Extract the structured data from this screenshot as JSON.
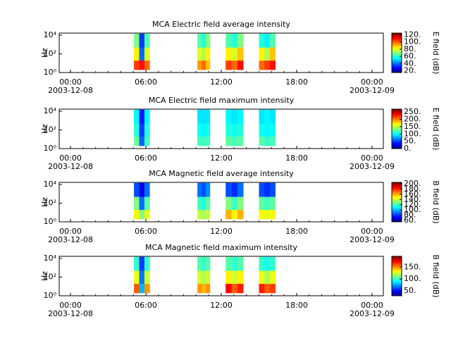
{
  "chart_data": [
    {
      "type": "spectrogram",
      "title": "MCA  Electric field average intensity",
      "ylabel": "Hz",
      "clabel": "E field (dB)",
      "xlim": [
        -0.9,
        24.9
      ],
      "xticks": [
        {
          "value": 0,
          "label": "00:00"
        },
        {
          "value": 6,
          "label": "06:00"
        },
        {
          "value": 12,
          "label": "12:00"
        },
        {
          "value": 18,
          "label": "18:00"
        },
        {
          "value": 24,
          "label": "00:00"
        }
      ],
      "xdates": [
        {
          "value": 0,
          "label": "2003-12-08"
        },
        {
          "value": 24,
          "label": "2003-12-09"
        }
      ],
      "ylim": [
        1,
        17000
      ],
      "log_y": true,
      "yticks": [
        {
          "value": 1,
          "label": "10⁰"
        },
        {
          "value": 100,
          "label": "10²"
        },
        {
          "value": 10000,
          "label": "10⁴"
        }
      ],
      "clim": [
        15,
        125
      ],
      "cticks": [
        {
          "value": 20,
          "label": "20."
        },
        {
          "value": 40,
          "label": "40."
        },
        {
          "value": 60,
          "label": "60."
        },
        {
          "value": 80,
          "label": "80."
        },
        {
          "value": 100,
          "label": "100."
        },
        {
          "value": 120,
          "label": "120."
        }
      ],
      "freq_bins": [
        2,
        20,
        500,
        15000
      ],
      "segments": [
        {
          "x": [
            5.05,
            6.3
          ],
          "values": [
            [
              105,
              110,
              100
            ],
            [
              85,
              40,
              80
            ],
            [
              70,
              35,
              65
            ]
          ]
        },
        {
          "x": [
            10.1,
            11.1
          ],
          "values": [
            [
              95,
              100,
              90
            ],
            [
              80,
              75,
              85
            ],
            [
              65,
              60,
              70
            ]
          ]
        },
        {
          "x": [
            12.35,
            13.75
          ],
          "values": [
            [
              105,
              100,
              110
            ],
            [
              85,
              80,
              90
            ],
            [
              65,
              60,
              70
            ]
          ]
        },
        {
          "x": [
            15.0,
            16.3
          ],
          "values": [
            [
              100,
              105,
              110
            ],
            [
              85,
              75,
              90
            ],
            [
              60,
              55,
              65
            ]
          ]
        }
      ]
    },
    {
      "type": "spectrogram",
      "title": "MCA  Electric field maximum intensity",
      "ylabel": "Hz",
      "clabel": "E field (dB)",
      "xlim": [
        -0.9,
        24.9
      ],
      "xticks": [
        {
          "value": 0,
          "label": "00:00"
        },
        {
          "value": 6,
          "label": "06:00"
        },
        {
          "value": 12,
          "label": "12:00"
        },
        {
          "value": 18,
          "label": "18:00"
        },
        {
          "value": 24,
          "label": "00:00"
        }
      ],
      "xdates": [
        {
          "value": 0,
          "label": "2003-12-08"
        },
        {
          "value": 24,
          "label": "2003-12-09"
        }
      ],
      "ylim": [
        1,
        17000
      ],
      "log_y": true,
      "yticks": [
        {
          "value": 1,
          "label": "10⁰"
        },
        {
          "value": 100,
          "label": "10²"
        },
        {
          "value": 10000,
          "label": "10⁴"
        }
      ],
      "clim": [
        0,
        270
      ],
      "cticks": [
        {
          "value": 0,
          "label": "0."
        },
        {
          "value": 50,
          "label": "50."
        },
        {
          "value": 100,
          "label": "100."
        },
        {
          "value": 150,
          "label": "150."
        },
        {
          "value": 200,
          "label": "200."
        },
        {
          "value": 250,
          "label": "250."
        }
      ],
      "freq_bins": [
        2,
        20,
        500,
        15000
      ],
      "segments": [
        {
          "x": [
            5.05,
            6.3
          ],
          "values": [
            [
              130,
              60,
              120
            ],
            [
              110,
              50,
              110
            ],
            [
              100,
              40,
              100
            ]
          ]
        },
        {
          "x": [
            10.1,
            11.1
          ],
          "values": [
            [
              120,
              115,
              120
            ],
            [
              105,
              100,
              105
            ],
            [
              95,
              95,
              95
            ]
          ]
        },
        {
          "x": [
            12.35,
            13.75
          ],
          "values": [
            [
              125,
              120,
              125
            ],
            [
              110,
              105,
              110
            ],
            [
              100,
              95,
              100
            ]
          ]
        },
        {
          "x": [
            15.0,
            16.3
          ],
          "values": [
            [
              125,
              115,
              120
            ],
            [
              105,
              100,
              105
            ],
            [
              95,
              100,
              95
            ]
          ]
        }
      ]
    },
    {
      "type": "spectrogram",
      "title": "MCA  Magnetic field average intensity",
      "ylabel": "Hz",
      "clabel": "B field (dB)",
      "xlim": [
        -0.9,
        24.9
      ],
      "xticks": [
        {
          "value": 0,
          "label": "00:00"
        },
        {
          "value": 6,
          "label": "06:00"
        },
        {
          "value": 12,
          "label": "12:00"
        },
        {
          "value": 18,
          "label": "18:00"
        },
        {
          "value": 24,
          "label": "00:00"
        }
      ],
      "xdates": [
        {
          "value": 0,
          "label": "2003-12-08"
        },
        {
          "value": 24,
          "label": "2003-12-09"
        }
      ],
      "ylim": [
        1,
        17000
      ],
      "log_y": true,
      "yticks": [
        {
          "value": 1,
          "label": "10⁰"
        },
        {
          "value": 100,
          "label": "10²"
        },
        {
          "value": 10000,
          "label": "10⁴"
        }
      ],
      "clim": [
        55,
        205
      ],
      "cticks": [
        {
          "value": 60,
          "label": "60."
        },
        {
          "value": 80,
          "label": "80."
        },
        {
          "value": 100,
          "label": "100."
        },
        {
          "value": 120,
          "label": "120."
        },
        {
          "value": 140,
          "label": "140."
        },
        {
          "value": 160,
          "label": "160."
        },
        {
          "value": 180,
          "label": "180."
        },
        {
          "value": 200,
          "label": "200."
        }
      ],
      "freq_bins": [
        2,
        20,
        500,
        15000
      ],
      "segments": [
        {
          "x": [
            5.05,
            6.3
          ],
          "values": [
            [
              150,
              130,
              145
            ],
            [
              130,
              90,
              125
            ],
            [
              85,
              70,
              90
            ]
          ]
        },
        {
          "x": [
            10.1,
            11.1
          ],
          "values": [
            [
              140,
              135,
              140
            ],
            [
              120,
              115,
              125
            ],
            [
              90,
              85,
              95
            ]
          ]
        },
        {
          "x": [
            12.35,
            13.75
          ],
          "values": [
            [
              160,
              150,
              160
            ],
            [
              130,
              120,
              130
            ],
            [
              85,
              80,
              90
            ]
          ]
        },
        {
          "x": [
            15.0,
            16.3
          ],
          "values": [
            [
              150,
              145,
              150
            ],
            [
              125,
              120,
              125
            ],
            [
              85,
              80,
              85
            ]
          ]
        }
      ]
    },
    {
      "type": "spectrogram",
      "title": "MCA  Magnetic field maximum intensity",
      "ylabel": "Hz",
      "clabel": "B field (dB)",
      "xlim": [
        -0.9,
        24.9
      ],
      "xticks": [
        {
          "value": 0,
          "label": "00:00"
        },
        {
          "value": 6,
          "label": "06:00"
        },
        {
          "value": 12,
          "label": "12:00"
        },
        {
          "value": 18,
          "label": "18:00"
        },
        {
          "value": 24,
          "label": "00:00"
        }
      ],
      "xdates": [
        {
          "value": 0,
          "label": "2003-12-08"
        },
        {
          "value": 24,
          "label": "2003-12-09"
        }
      ],
      "ylim": [
        1,
        17000
      ],
      "log_y": true,
      "yticks": [
        {
          "value": 1,
          "label": "10⁰"
        },
        {
          "value": 100,
          "label": "10²"
        },
        {
          "value": 10000,
          "label": "10⁴"
        }
      ],
      "clim": [
        30,
        195
      ],
      "cticks": [
        {
          "value": 50,
          "label": "50."
        },
        {
          "value": 100,
          "label": "100."
        },
        {
          "value": 150,
          "label": "150."
        }
      ],
      "freq_bins": [
        2,
        20,
        500,
        15000
      ],
      "segments": [
        {
          "x": [
            5.05,
            6.3
          ],
          "values": [
            [
              160,
              80,
              150
            ],
            [
              130,
              70,
              125
            ],
            [
              100,
              60,
              100
            ]
          ]
        },
        {
          "x": [
            10.1,
            11.1
          ],
          "values": [
            [
              150,
              145,
              150
            ],
            [
              125,
              120,
              125
            ],
            [
              105,
              100,
              105
            ]
          ]
        },
        {
          "x": [
            12.35,
            13.75
          ],
          "values": [
            [
              175,
              160,
              170
            ],
            [
              135,
              125,
              135
            ],
            [
              105,
              100,
              105
            ]
          ]
        },
        {
          "x": [
            15.0,
            16.3
          ],
          "values": [
            [
              170,
              160,
              165
            ],
            [
              130,
              120,
              130
            ],
            [
              100,
              95,
              100
            ]
          ]
        }
      ]
    }
  ]
}
